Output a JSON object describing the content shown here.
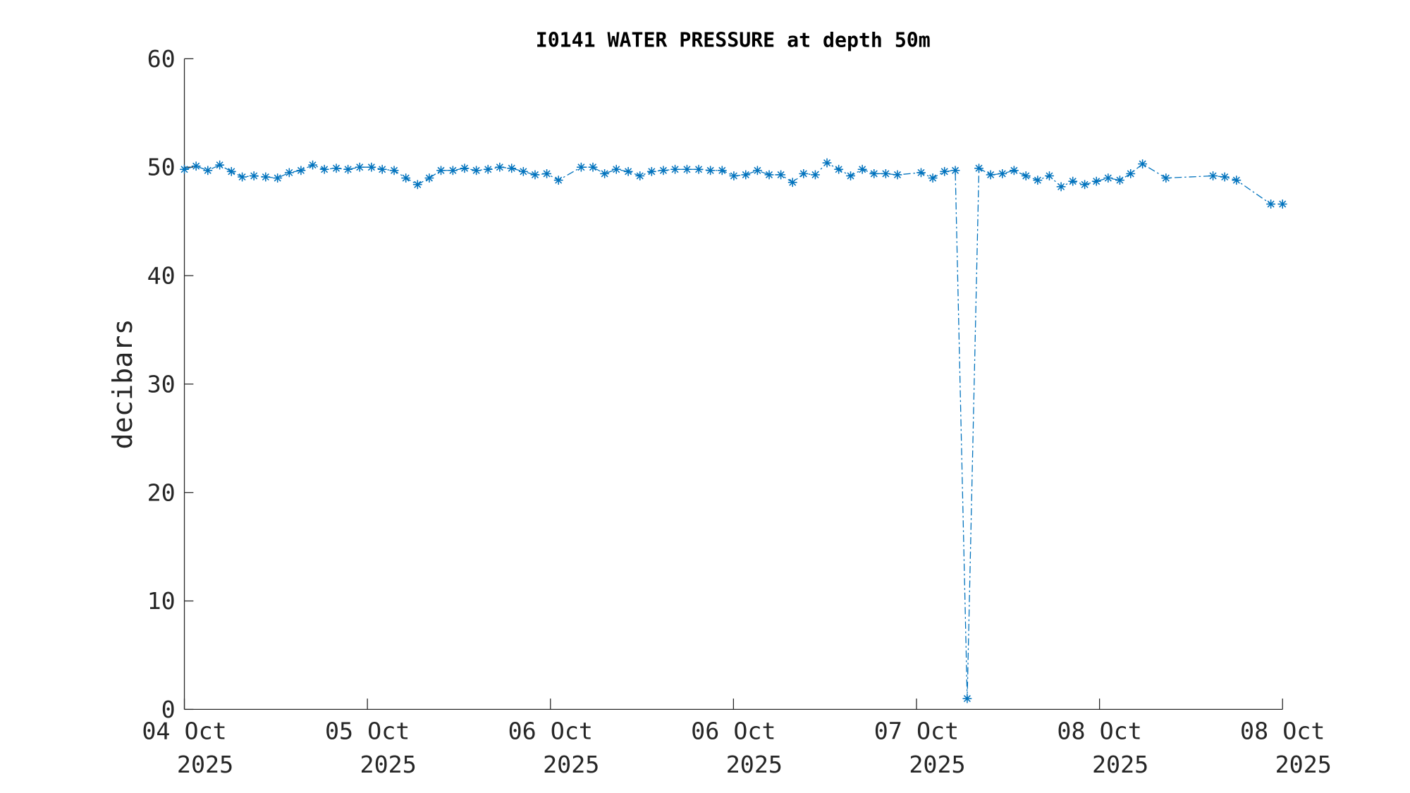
{
  "chart_data": {
    "type": "line",
    "title": "I0141 WATER PRESSURE at depth 50m",
    "xlabel": "",
    "ylabel": "decibars",
    "ylim": [
      0,
      60
    ],
    "xlim": [
      0,
      6
    ],
    "yticks": [
      0,
      10,
      20,
      30,
      40,
      50,
      60
    ],
    "xtick_labels": [
      {
        "day": "04 Oct",
        "year": "2025"
      },
      {
        "day": "05 Oct",
        "year": "2025"
      },
      {
        "day": "06 Oct",
        "year": "2025"
      },
      {
        "day": "06 Oct",
        "year": "2025"
      },
      {
        "day": "07 Oct",
        "year": "2025"
      },
      {
        "day": "08 Oct",
        "year": "2025"
      },
      {
        "day": "08 Oct",
        "year": "2025"
      }
    ],
    "x_units": "days from first tick",
    "line_style": "dash-dot",
    "marker": "asterisk",
    "color": "#0072BD",
    "grid": false,
    "series": [
      {
        "name": "water pressure",
        "x": [
          0,
          0.064,
          0.128,
          0.193,
          0.257,
          0.316,
          0.38,
          0.444,
          0.509,
          0.573,
          0.637,
          0.701,
          0.765,
          0.83,
          0.894,
          0.958,
          1.022,
          1.081,
          1.146,
          1.21,
          1.274,
          1.338,
          1.402,
          1.467,
          1.531,
          1.595,
          1.659,
          1.723,
          1.788,
          1.852,
          1.916,
          1.98,
          2.044,
          2.168,
          2.232,
          2.296,
          2.36,
          2.425,
          2.489,
          2.553,
          2.617,
          2.681,
          2.746,
          2.81,
          2.874,
          2.938,
          3.002,
          3.067,
          3.131,
          3.195,
          3.259,
          3.323,
          3.383,
          3.447,
          3.511,
          3.575,
          3.64,
          3.704,
          3.768,
          3.832,
          3.896,
          4.025,
          4.089,
          4.153,
          4.212,
          4.277,
          4.341,
          4.405,
          4.469,
          4.533,
          4.598,
          4.662,
          4.726,
          4.79,
          4.854,
          4.919,
          4.983,
          5.047,
          5.111,
          5.17,
          5.235,
          5.363,
          5.62,
          5.684,
          5.748,
          5.936,
          6.0
        ],
        "y": [
          49.8,
          50.1,
          49.7,
          50.2,
          49.6,
          49.1,
          49.2,
          49.1,
          49.0,
          49.5,
          49.7,
          50.2,
          49.8,
          49.9,
          49.8,
          50.0,
          50.0,
          49.8,
          49.7,
          49.0,
          48.4,
          49.0,
          49.7,
          49.7,
          49.9,
          49.7,
          49.8,
          50.0,
          49.9,
          49.6,
          49.3,
          49.4,
          48.8,
          50.0,
          50.0,
          49.4,
          49.8,
          49.6,
          49.2,
          49.6,
          49.7,
          49.8,
          49.8,
          49.8,
          49.7,
          49.7,
          49.2,
          49.3,
          49.7,
          49.3,
          49.3,
          48.6,
          49.4,
          49.3,
          50.4,
          49.8,
          49.2,
          49.8,
          49.4,
          49.4,
          49.3,
          49.5,
          49.0,
          49.6,
          49.7,
          1.0,
          49.9,
          49.3,
          49.4,
          49.7,
          49.2,
          48.8,
          49.2,
          48.2,
          48.7,
          48.4,
          48.7,
          49.0,
          48.8,
          49.4,
          50.3,
          49.0,
          49.2,
          49.1,
          48.8,
          46.6,
          46.6
        ]
      }
    ]
  }
}
